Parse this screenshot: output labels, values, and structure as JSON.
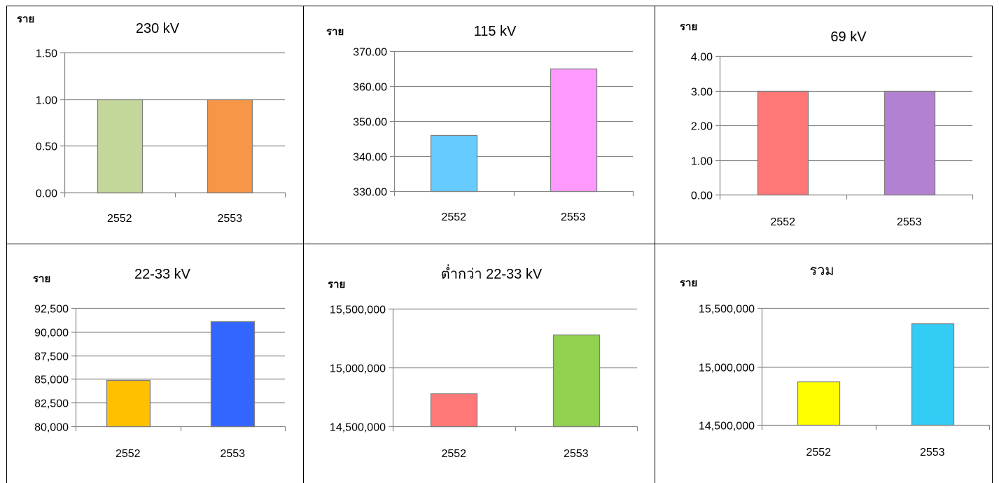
{
  "chart_data": [
    {
      "type": "bar",
      "title": "230 kV",
      "ylabel": "ราย",
      "categories": [
        "2552",
        "2553"
      ],
      "values": [
        1,
        1
      ],
      "colors": [
        "#c4d79b",
        "#f79646"
      ],
      "ylim": [
        0,
        1.5
      ],
      "yticks": [
        0,
        0.5,
        1,
        1.5
      ],
      "ytick_labels": [
        "0.00",
        "0.50",
        "1.00",
        "1.50"
      ],
      "grid": true
    },
    {
      "type": "bar",
      "title": "115 kV",
      "ylabel": "ราย",
      "categories": [
        "2552",
        "2553"
      ],
      "values": [
        346,
        365
      ],
      "colors": [
        "#66ccff",
        "#ff99ff"
      ],
      "ylim": [
        330,
        370
      ],
      "yticks": [
        330,
        340,
        350,
        360,
        370
      ],
      "ytick_labels": [
        "330.00",
        "340.00",
        "350.00",
        "360.00",
        "370.00"
      ],
      "grid": true
    },
    {
      "type": "bar",
      "title": "69 kV",
      "ylabel": "ราย",
      "categories": [
        "2552",
        "2553"
      ],
      "values": [
        3,
        3
      ],
      "colors": [
        "#ff7777",
        "#b381d1"
      ],
      "ylim": [
        0,
        4
      ],
      "yticks": [
        0,
        1,
        2,
        3,
        4
      ],
      "ytick_labels": [
        "0.00",
        "1.00",
        "2.00",
        "3.00",
        "4.00"
      ],
      "grid": true
    },
    {
      "type": "bar",
      "title": "22-33 kV",
      "ylabel": "ราย",
      "categories": [
        "2552",
        "2553"
      ],
      "values": [
        84900,
        91100
      ],
      "colors": [
        "#ffc000",
        "#3366ff"
      ],
      "ylim": [
        80000,
        92500
      ],
      "yticks": [
        80000,
        82500,
        85000,
        87500,
        90000,
        92500
      ],
      "ytick_labels": [
        "80,000",
        "82,500",
        "85,000",
        "87,500",
        "90,000",
        "92,500"
      ],
      "grid": true
    },
    {
      "type": "bar",
      "title": "ต่ำกว่า 22-33 kV",
      "ylabel": "ราย",
      "categories": [
        "2552",
        "2553"
      ],
      "values": [
        14780000,
        15280000
      ],
      "colors": [
        "#ff7777",
        "#92d050"
      ],
      "ylim": [
        14500000,
        15500000
      ],
      "yticks": [
        14500000,
        15000000,
        15500000
      ],
      "ytick_labels": [
        "14,500,000",
        "15,000,000",
        "15,500,000"
      ],
      "grid": true
    },
    {
      "type": "bar",
      "title": "รวม",
      "ylabel": "ราย",
      "categories": [
        "2552",
        "2553"
      ],
      "values": [
        14870000,
        15370000
      ],
      "colors": [
        "#ffff00",
        "#33ccf5"
      ],
      "ylim": [
        14500000,
        15500000
      ],
      "yticks": [
        14500000,
        15000000,
        15500000
      ],
      "ytick_labels": [
        "14,500,000",
        "15,000,000",
        "15,500,000"
      ],
      "grid": true
    }
  ]
}
